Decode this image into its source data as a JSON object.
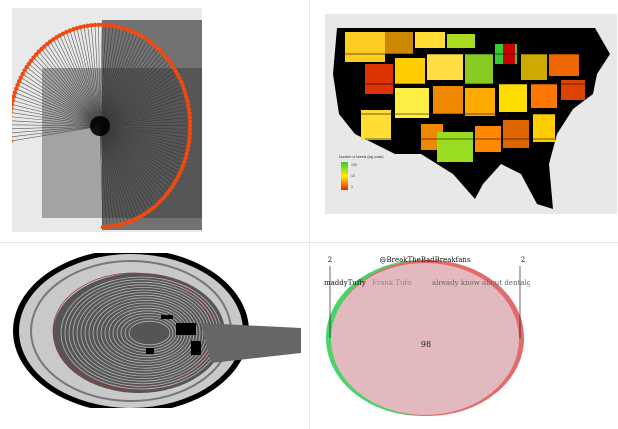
{
  "venn": {
    "title": "@BreakTheBadBreakfans",
    "left_label": "maddyTuffy",
    "mid_label": "Frank Tufo",
    "right_label": "already know about dentalgear",
    "left_count": "2",
    "right_count": "2",
    "center_value": "98",
    "left_color": "#4ad36a",
    "right_color": "#e26b6b"
  },
  "map_legend": {
    "title": "Number of tweets (log scale)",
    "ticks": [
      "100",
      "10",
      "1"
    ]
  },
  "colors": {
    "radial_orange": "#f04a10",
    "map_black": "#000000"
  }
}
